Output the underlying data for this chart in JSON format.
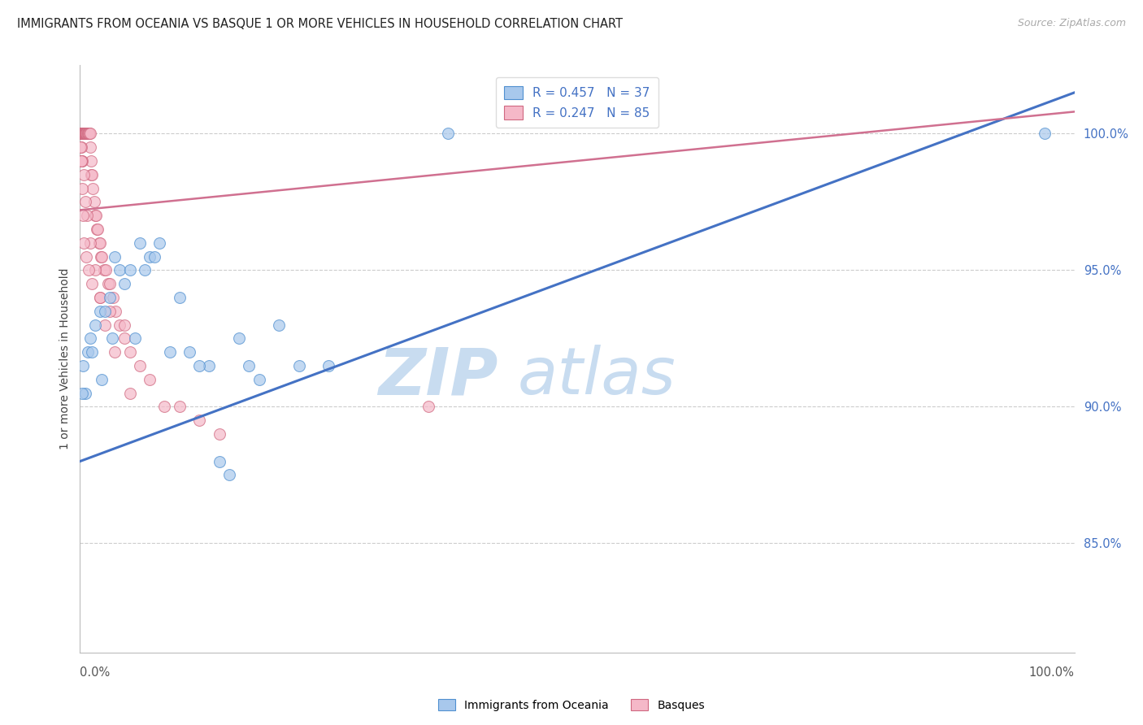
{
  "title": "IMMIGRANTS FROM OCEANIA VS BASQUE 1 OR MORE VEHICLES IN HOUSEHOLD CORRELATION CHART",
  "source": "Source: ZipAtlas.com",
  "ylabel": "1 or more Vehicles in Household",
  "xlim": [
    0.0,
    100.0
  ],
  "ylim": [
    81.0,
    102.5
  ],
  "yticks": [
    85.0,
    90.0,
    95.0,
    100.0
  ],
  "ytick_labels": [
    "85.0%",
    "90.0%",
    "95.0%",
    "100.0%"
  ],
  "legend_r_blue": "R = 0.457",
  "legend_n_blue": "N = 37",
  "legend_r_pink": "R = 0.247",
  "legend_n_pink": "N = 85",
  "legend_label_blue": "Immigrants from Oceania",
  "legend_label_pink": "Basques",
  "blue_color": "#A8C8EC",
  "pink_color": "#F5B8C8",
  "blue_edge_color": "#5090D0",
  "pink_edge_color": "#D06880",
  "blue_line_color": "#4472C4",
  "pink_line_color": "#D07090",
  "blue_text_color": "#4472C4",
  "blue_scatter_x": [
    0.3,
    0.5,
    1.0,
    1.5,
    2.0,
    2.5,
    3.0,
    3.5,
    4.0,
    5.0,
    5.5,
    6.0,
    7.0,
    8.0,
    9.0,
    10.0,
    11.0,
    13.0,
    14.0,
    15.0,
    16.0,
    17.0,
    18.0,
    20.0,
    22.0,
    25.0,
    0.2,
    0.8,
    1.2,
    2.2,
    3.2,
    4.5,
    6.5,
    7.5,
    12.0,
    37.0,
    97.0
  ],
  "blue_scatter_y": [
    91.5,
    90.5,
    92.5,
    93.0,
    93.5,
    93.5,
    94.0,
    95.5,
    95.0,
    95.0,
    92.5,
    96.0,
    95.5,
    96.0,
    92.0,
    94.0,
    92.0,
    91.5,
    88.0,
    87.5,
    92.5,
    91.5,
    91.0,
    93.0,
    91.5,
    91.5,
    90.5,
    92.0,
    92.0,
    91.0,
    92.5,
    94.5,
    95.0,
    95.5,
    91.5,
    100.0,
    100.0
  ],
  "pink_scatter_x": [
    0.05,
    0.08,
    0.1,
    0.12,
    0.15,
    0.18,
    0.2,
    0.22,
    0.25,
    0.28,
    0.3,
    0.32,
    0.35,
    0.38,
    0.4,
    0.42,
    0.45,
    0.48,
    0.5,
    0.52,
    0.55,
    0.58,
    0.6,
    0.62,
    0.65,
    0.7,
    0.75,
    0.8,
    0.85,
    0.9,
    0.95,
    1.0,
    1.05,
    1.1,
    1.15,
    1.2,
    1.3,
    1.4,
    1.5,
    1.6,
    1.7,
    1.8,
    1.9,
    2.0,
    2.1,
    2.2,
    2.4,
    2.6,
    2.8,
    3.0,
    3.3,
    3.6,
    4.0,
    4.5,
    5.0,
    6.0,
    7.0,
    8.5,
    10.0,
    12.0,
    14.0,
    0.15,
    0.25,
    0.35,
    0.5,
    0.7,
    1.0,
    1.5,
    2.0,
    2.5,
    3.5,
    5.0,
    0.1,
    0.2,
    0.3,
    0.4,
    0.6,
    0.9,
    1.2,
    2.0,
    3.0,
    4.5,
    35.0,
    0.08,
    0.15
  ],
  "pink_scatter_y": [
    100.0,
    100.0,
    100.0,
    100.0,
    100.0,
    100.0,
    100.0,
    100.0,
    100.0,
    100.0,
    100.0,
    100.0,
    100.0,
    100.0,
    100.0,
    100.0,
    100.0,
    100.0,
    100.0,
    100.0,
    100.0,
    100.0,
    100.0,
    100.0,
    100.0,
    100.0,
    100.0,
    100.0,
    100.0,
    100.0,
    100.0,
    100.0,
    99.5,
    99.0,
    98.5,
    98.5,
    98.0,
    97.5,
    97.0,
    97.0,
    96.5,
    96.5,
    96.0,
    96.0,
    95.5,
    95.5,
    95.0,
    95.0,
    94.5,
    94.5,
    94.0,
    93.5,
    93.0,
    92.5,
    92.0,
    91.5,
    91.0,
    90.0,
    90.0,
    89.5,
    89.0,
    99.5,
    99.0,
    98.5,
    97.5,
    97.0,
    96.0,
    95.0,
    94.0,
    93.0,
    92.0,
    90.5,
    99.0,
    98.0,
    97.0,
    96.0,
    95.5,
    95.0,
    94.5,
    94.0,
    93.5,
    93.0,
    90.0,
    99.5,
    99.0
  ],
  "blue_trendline": [
    0.0,
    88.0,
    100.0,
    101.5
  ],
  "pink_trendline": [
    0.0,
    97.2,
    100.0,
    100.8
  ],
  "watermark_color": "#C8DCF0",
  "title_fontsize": 10.5,
  "source_fontsize": 9,
  "tick_fontsize": 10.5,
  "ylabel_fontsize": 10,
  "legend_fontsize": 11
}
